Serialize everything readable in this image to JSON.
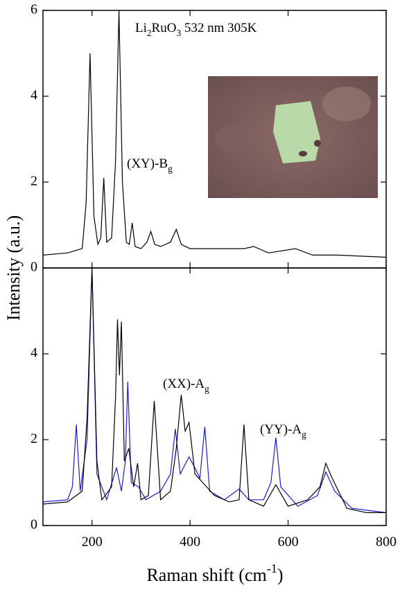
{
  "ylabel": "Intensity (a.u.)",
  "xlabel": [
    {
      "text": "Raman shift (cm"
    },
    {
      "text": "-1",
      "sup": true
    },
    {
      "text": ")"
    }
  ],
  "chart_data": [
    {
      "type": "line",
      "annotations": [
        [
          {
            "text": "Li"
          },
          {
            "text": "2",
            "sub": true
          },
          {
            "text": "RuO"
          },
          {
            "text": "3",
            "sub": true
          },
          {
            "text": " 532 nm  305K"
          }
        ],
        [
          {
            "text": "(XY)-B"
          },
          {
            "text": "g",
            "sub": true
          }
        ]
      ],
      "xlim": [
        100,
        800
      ],
      "xticks": [
        200,
        400,
        600,
        800
      ],
      "show_xtick_labels": false,
      "ylim": [
        0,
        6
      ],
      "yticks": [
        0,
        2,
        4,
        6
      ],
      "series": [
        {
          "color": "#000000",
          "x": [
            100,
            150,
            180,
            188,
            196,
            204,
            212,
            218,
            224,
            230,
            240,
            248,
            255,
            262,
            270,
            276,
            282,
            288,
            300,
            312,
            320,
            328,
            340,
            360,
            372,
            382,
            400,
            450,
            510,
            530,
            560,
            615,
            650,
            700,
            800
          ],
          "values": [
            0.3,
            0.35,
            0.45,
            1.5,
            5.0,
            1.2,
            0.55,
            0.7,
            2.1,
            0.6,
            0.7,
            2.5,
            6,
            2.0,
            0.6,
            0.55,
            1.05,
            0.5,
            0.45,
            0.6,
            0.85,
            0.55,
            0.5,
            0.6,
            0.9,
            0.55,
            0.45,
            0.45,
            0.45,
            0.5,
            0.35,
            0.45,
            0.3,
            0.3,
            0.25
          ]
        }
      ]
    },
    {
      "type": "line",
      "annotations": [
        [
          {
            "text": "(XX)-A"
          },
          {
            "text": "g",
            "sub": true
          }
        ],
        [
          {
            "text": "(YY)-A"
          },
          {
            "text": "g",
            "sub": true
          }
        ]
      ],
      "xlim": [
        100,
        800
      ],
      "xticks": [
        200,
        400,
        600,
        800
      ],
      "show_xtick_labels": true,
      "ylim": [
        0,
        6
      ],
      "yticks": [
        0,
        2,
        4
      ],
      "series": [
        {
          "color": "#1a1adc",
          "x": [
            100,
            150,
            160,
            168,
            176,
            190,
            200,
            210,
            230,
            250,
            260,
            268,
            273,
            280,
            295,
            310,
            340,
            360,
            370,
            380,
            398,
            412,
            420,
            430,
            440,
            470,
            500,
            520,
            550,
            565,
            575,
            585,
            620,
            660,
            677,
            695,
            730,
            800
          ],
          "values": [
            0.55,
            0.6,
            0.9,
            2.35,
            0.8,
            2,
            6,
            1.2,
            0.6,
            1.35,
            0.8,
            1.5,
            3.35,
            1.0,
            0.9,
            0.6,
            0.8,
            1.2,
            2.25,
            1.2,
            1.6,
            1.3,
            1.1,
            2.3,
            0.8,
            0.6,
            0.85,
            0.6,
            0.6,
            1.0,
            2.05,
            0.9,
            0.45,
            0.7,
            1.25,
            0.8,
            0.4,
            0.3
          ]
        },
        {
          "color": "#000000",
          "x": [
            100,
            150,
            180,
            190,
            200,
            210,
            220,
            240,
            248,
            252,
            256,
            260,
            266,
            275,
            285,
            293,
            300,
            315,
            327,
            340,
            360,
            372,
            382,
            390,
            398,
            410,
            450,
            480,
            500,
            510,
            520,
            550,
            575,
            600,
            640,
            665,
            677,
            690,
            720,
            760,
            800
          ],
          "values": [
            0.5,
            0.55,
            0.8,
            2.5,
            6,
            1.5,
            0.6,
            0.9,
            3.0,
            4.8,
            3.5,
            4.75,
            1.5,
            1.8,
            0.9,
            1.45,
            0.6,
            0.7,
            2.9,
            0.6,
            0.8,
            1.8,
            3.05,
            2.2,
            2.4,
            1.2,
            0.7,
            0.55,
            0.6,
            2.35,
            0.6,
            0.45,
            0.95,
            0.45,
            0.6,
            0.9,
            1.45,
            1.1,
            0.4,
            0.3,
            0.3
          ]
        }
      ]
    }
  ]
}
